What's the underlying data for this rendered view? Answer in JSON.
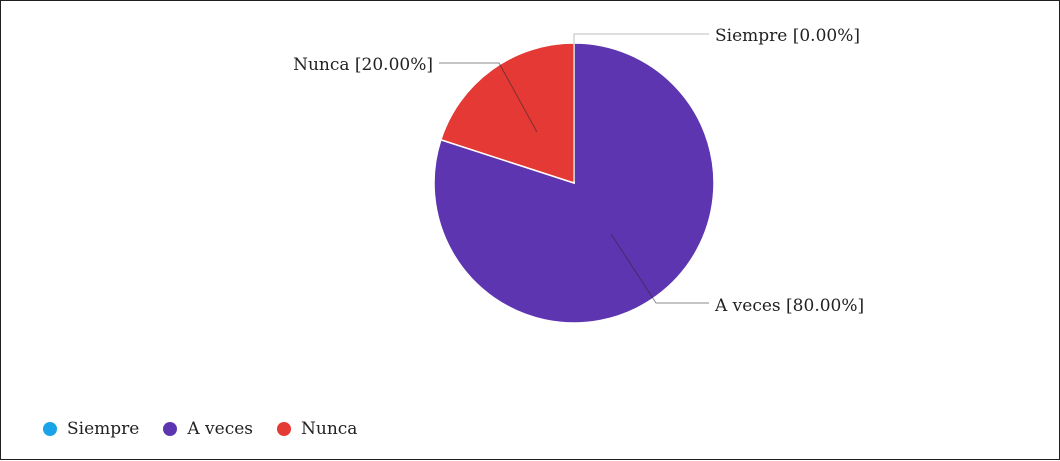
{
  "chart_data": {
    "type": "pie",
    "title": "",
    "slices": [
      {
        "label": "Siempre",
        "value": 0.0,
        "display": "Siempre [0.00%]",
        "color": "#1aa3e8"
      },
      {
        "label": "A veces",
        "value": 80.0,
        "display": "A veces [80.00%]",
        "color": "#5e35b1"
      },
      {
        "label": "Nunca",
        "value": 20.0,
        "display": "Nunca [20.00%]",
        "color": "#e53935"
      }
    ],
    "legend": {
      "position": "bottom-left",
      "items": [
        {
          "label": "Siempre",
          "color": "#1aa3e8"
        },
        {
          "label": "A veces",
          "color": "#5e35b1"
        },
        {
          "label": "Nunca",
          "color": "#e53935"
        }
      ]
    }
  }
}
